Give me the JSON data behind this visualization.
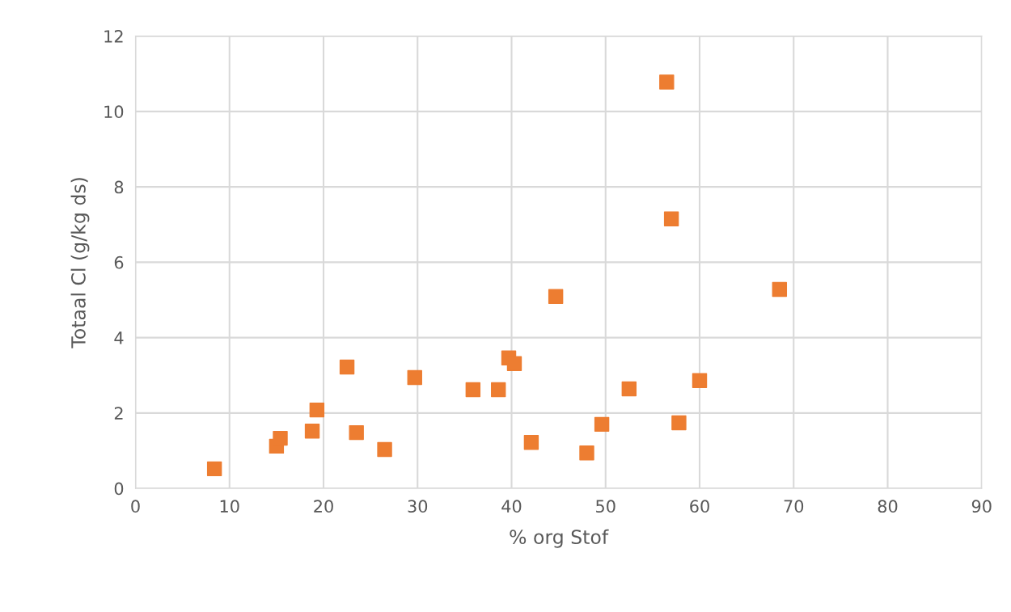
{
  "chart_data": {
    "type": "scatter",
    "xlabel": "% org Stof",
    "ylabel": "Totaal Cl (g/kg ds)",
    "xlim": [
      0,
      90
    ],
    "xticks": [
      0,
      10,
      20,
      30,
      40,
      50,
      60,
      70,
      80,
      90
    ],
    "ylim": [
      0,
      12
    ],
    "yticks": [
      0,
      2,
      4,
      6,
      8,
      10,
      12
    ],
    "grid": true,
    "marker": "square",
    "series": [
      {
        "color": "#ed7d31",
        "x": [
          8.4,
          15.0,
          15.4,
          18.8,
          19.3,
          22.5,
          23.5,
          26.5,
          29.7,
          35.9,
          38.6,
          39.7,
          40.3,
          42.1,
          44.7,
          48.0,
          49.6,
          52.5,
          56.5,
          57.0,
          57.8,
          60.0,
          68.5
        ],
        "values": [
          0.52,
          1.12,
          1.33,
          1.52,
          2.08,
          3.22,
          1.48,
          1.03,
          2.94,
          2.62,
          2.62,
          3.46,
          3.31,
          1.22,
          5.09,
          0.94,
          1.7,
          2.64,
          10.78,
          7.15,
          1.74,
          2.86,
          5.28
        ]
      }
    ]
  }
}
